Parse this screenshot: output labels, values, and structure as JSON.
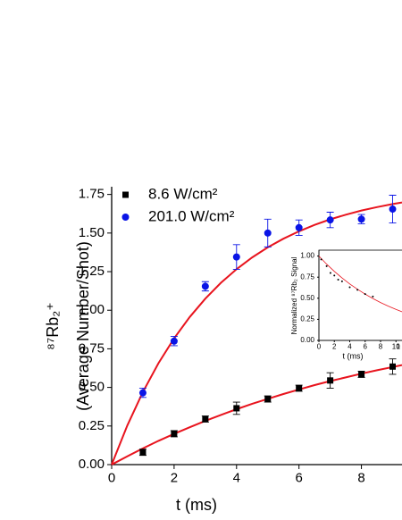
{
  "chart_data": [
    {
      "type": "scatter",
      "xlabel": "t (ms)",
      "ylabel": [
        "⁸⁷Rb₂⁺",
        "(Average Number/Shot)"
      ],
      "xlim": [
        0,
        9.3
      ],
      "ylim": [
        0,
        1.8
      ],
      "xticks": [
        0,
        2,
        4,
        6,
        8
      ],
      "yticks": [
        {
          "value": 0,
          "label": "0.00"
        },
        {
          "value": 0.25,
          "label": "0.25"
        },
        {
          "value": 0.5,
          "label": "0.50"
        },
        {
          "value": 0.75,
          "label": "0.75"
        },
        {
          "value": 1,
          "label": "1.00"
        },
        {
          "value": 1.25,
          "label": "1.25"
        },
        {
          "value": 1.5,
          "label": "1.50"
        },
        {
          "value": 1.75,
          "label": "1.75"
        }
      ],
      "legend": "upper left",
      "series": [
        {
          "name": "8.6 W/cm²",
          "color": "#000000",
          "marker": "square",
          "x": [
            1,
            2,
            3,
            4,
            5,
            6,
            7,
            8,
            9
          ],
          "values": [
            0.08,
            0.2,
            0.295,
            0.365,
            0.425,
            0.495,
            0.545,
            0.585,
            0.635
          ],
          "errors": [
            0.02,
            0.02,
            0.02,
            0.04,
            0.02,
            0.02,
            0.05,
            0.02,
            0.05
          ]
        },
        {
          "name": "201.0 W/cm²",
          "color": "#0a14e6",
          "marker": "circle",
          "x": [
            1,
            2,
            3,
            4,
            5,
            6,
            7,
            8,
            9
          ],
          "values": [
            0.465,
            0.8,
            1.155,
            1.345,
            1.5,
            1.535,
            1.585,
            1.59,
            1.655
          ],
          "errors": [
            0.03,
            0.03,
            0.03,
            0.08,
            0.09,
            0.05,
            0.05,
            0.03,
            0.09
          ]
        }
      ],
      "fit_lines": [
        {
          "color": "#e8141e",
          "x": [
            0,
            0.5,
            1,
            1.5,
            2,
            2.5,
            3,
            3.5,
            4,
            4.5,
            5,
            5.5,
            6,
            6.5,
            7,
            7.5,
            8,
            8.5,
            9,
            9.3
          ],
          "values": [
            0,
            0.054,
            0.105,
            0.154,
            0.199,
            0.242,
            0.283,
            0.322,
            0.359,
            0.394,
            0.426,
            0.457,
            0.487,
            0.515,
            0.541,
            0.565,
            0.589,
            0.611,
            0.632,
            0.645
          ]
        },
        {
          "color": "#e8141e",
          "x": [
            0,
            0.5,
            1,
            1.5,
            2,
            2.5,
            3,
            3.5,
            4,
            4.5,
            5,
            5.5,
            6,
            6.5,
            7,
            7.5,
            8,
            8.5,
            9,
            9.3
          ],
          "values": [
            0,
            0.253,
            0.47,
            0.657,
            0.818,
            0.956,
            1.075,
            1.178,
            1.266,
            1.342,
            1.407,
            1.463,
            1.511,
            1.553,
            1.589,
            1.619,
            1.646,
            1.668,
            1.688,
            1.698
          ]
        }
      ]
    },
    {
      "type": "scatter",
      "xlabel": "t (ms)",
      "ylabel": "Normalized ⁸⁷Rb₂ Signal",
      "xlim": [
        0,
        10.9
      ],
      "ylim": [
        0,
        1.07
      ],
      "xticks": [
        0,
        2,
        4,
        6,
        8,
        10,
        {
          "value": 12,
          "label": "1"
        }
      ],
      "yticks": [
        {
          "value": 0,
          "label": "0.00"
        },
        {
          "value": 0.25,
          "label": "0.25"
        },
        {
          "value": 0.5,
          "label": "0.50"
        },
        {
          "value": 0.75,
          "label": "0.75"
        },
        {
          "value": 1,
          "label": "1.00"
        }
      ],
      "series": [
        {
          "color": "#000000",
          "x": [
            0.3,
            1,
            1.5,
            2,
            2.5,
            3,
            4,
            5,
            6,
            7
          ],
          "values": [
            0.96,
            0.88,
            0.8,
            0.77,
            0.72,
            0.7,
            0.63,
            0.6,
            0.55,
            0.52
          ]
        }
      ],
      "fit_lines": [
        {
          "color": "#e8141e",
          "x": [
            0,
            1,
            2,
            3,
            4,
            5,
            6,
            7,
            8,
            9,
            10,
            10.9
          ],
          "values": [
            1,
            0.905,
            0.819,
            0.741,
            0.67,
            0.607,
            0.549,
            0.497,
            0.449,
            0.407,
            0.368,
            0.336
          ]
        }
      ]
    }
  ]
}
